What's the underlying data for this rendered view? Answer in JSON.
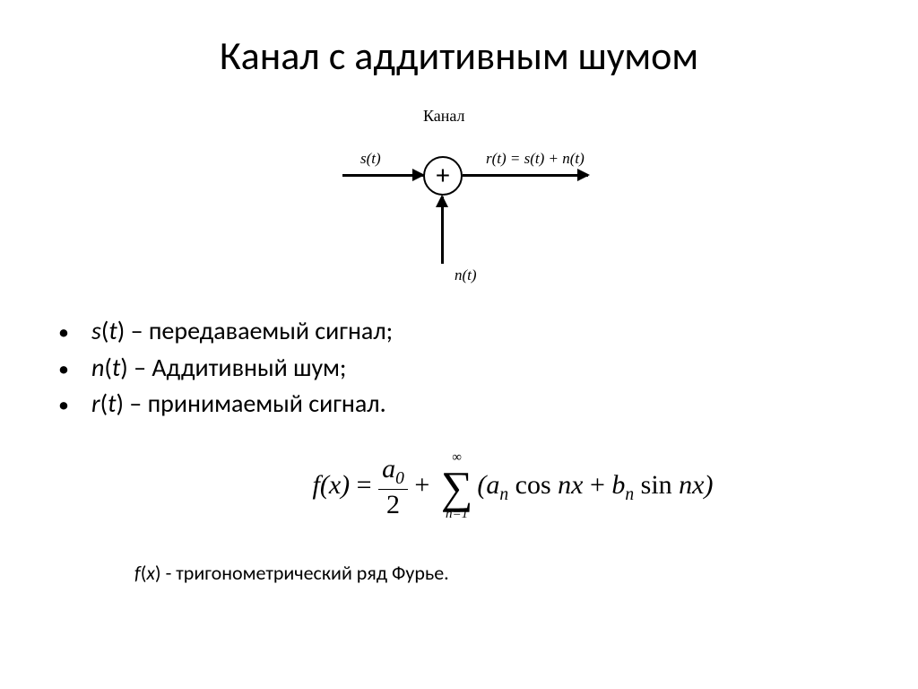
{
  "title": "Канал с аддитивным шумом",
  "diagram": {
    "label": "Канал",
    "input_signal": "s(t)",
    "noise_signal": "n(t)",
    "output_signal": "r(t) = s(t) + n(t)",
    "summer_symbol": "+",
    "colors": {
      "stroke": "#000000",
      "background": "#ffffff"
    },
    "line_width": 2.5,
    "arrowhead_size": 14
  },
  "bullets": [
    {
      "var": "s",
      "arg": "t",
      "desc": "передаваемый сигнал;"
    },
    {
      "var": "n",
      "arg": "t",
      "desc": "Аддитивный шум;"
    },
    {
      "var": "r",
      "arg": "t",
      "desc": "принимаемый сигнал."
    }
  ],
  "formula": {
    "lhs_fn": "f",
    "lhs_arg": "x",
    "a0_num": "a",
    "a0_sub": "0",
    "a0_den": "2",
    "sum_lower": "n=1",
    "sum_upper": "∞",
    "an_base": "a",
    "an_sub": "n",
    "cos": "cos",
    "nx": "nx",
    "bn_base": "b",
    "bn_sub": "n",
    "sin": "sin"
  },
  "footer": {
    "var": "f",
    "arg": "x",
    "desc": "тригонометрический ряд Фурье."
  },
  "typography": {
    "title_fontsize": 44,
    "bullet_fontsize": 28,
    "formula_fontsize": 30,
    "footer_fontsize": 22,
    "diagram_label_fontsize": 18,
    "signal_label_fontsize": 17
  }
}
